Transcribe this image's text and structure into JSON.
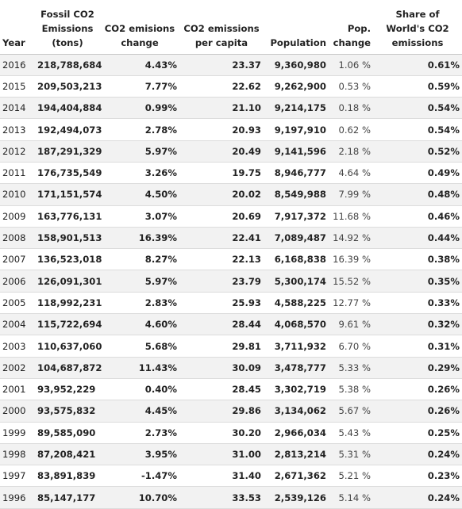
{
  "table": {
    "headers": {
      "year": "Year",
      "fossil": "Fossil CO2 Emissions (tons)",
      "change": "CO2 emisions change",
      "per_capita": "CO2 emissions per capita",
      "population": "Population",
      "pop_change": "Pop. change",
      "share": "Share of World's CO2 emissions"
    },
    "rows": [
      {
        "year": "2016",
        "fossil": "218,788,684",
        "change": "4.43%",
        "per_capita": "23.37",
        "population": "9,360,980",
        "pop_change": "1.06 %",
        "share": "0.61%"
      },
      {
        "year": "2015",
        "fossil": "209,503,213",
        "change": "7.77%",
        "per_capita": "22.62",
        "population": "9,262,900",
        "pop_change": "0.53 %",
        "share": "0.59%"
      },
      {
        "year": "2014",
        "fossil": "194,404,884",
        "change": "0.99%",
        "per_capita": "21.10",
        "population": "9,214,175",
        "pop_change": "0.18 %",
        "share": "0.54%"
      },
      {
        "year": "2013",
        "fossil": "192,494,073",
        "change": "2.78%",
        "per_capita": "20.93",
        "population": "9,197,910",
        "pop_change": "0.62 %",
        "share": "0.54%"
      },
      {
        "year": "2012",
        "fossil": "187,291,329",
        "change": "5.97%",
        "per_capita": "20.49",
        "population": "9,141,596",
        "pop_change": "2.18 %",
        "share": "0.52%"
      },
      {
        "year": "2011",
        "fossil": "176,735,549",
        "change": "3.26%",
        "per_capita": "19.75",
        "population": "8,946,777",
        "pop_change": "4.64 %",
        "share": "0.49%"
      },
      {
        "year": "2010",
        "fossil": "171,151,574",
        "change": "4.50%",
        "per_capita": "20.02",
        "population": "8,549,988",
        "pop_change": "7.99 %",
        "share": "0.48%"
      },
      {
        "year": "2009",
        "fossil": "163,776,131",
        "change": "3.07%",
        "per_capita": "20.69",
        "population": "7,917,372",
        "pop_change": "11.68 %",
        "share": "0.46%"
      },
      {
        "year": "2008",
        "fossil": "158,901,513",
        "change": "16.39%",
        "per_capita": "22.41",
        "population": "7,089,487",
        "pop_change": "14.92 %",
        "share": "0.44%"
      },
      {
        "year": "2007",
        "fossil": "136,523,018",
        "change": "8.27%",
        "per_capita": "22.13",
        "population": "6,168,838",
        "pop_change": "16.39 %",
        "share": "0.38%"
      },
      {
        "year": "2006",
        "fossil": "126,091,301",
        "change": "5.97%",
        "per_capita": "23.79",
        "population": "5,300,174",
        "pop_change": "15.52 %",
        "share": "0.35%"
      },
      {
        "year": "2005",
        "fossil": "118,992,231",
        "change": "2.83%",
        "per_capita": "25.93",
        "population": "4,588,225",
        "pop_change": "12.77 %",
        "share": "0.33%"
      },
      {
        "year": "2004",
        "fossil": "115,722,694",
        "change": "4.60%",
        "per_capita": "28.44",
        "population": "4,068,570",
        "pop_change": "9.61 %",
        "share": "0.32%"
      },
      {
        "year": "2003",
        "fossil": "110,637,060",
        "change": "5.68%",
        "per_capita": "29.81",
        "population": "3,711,932",
        "pop_change": "6.70 %",
        "share": "0.31%"
      },
      {
        "year": "2002",
        "fossil": "104,687,872",
        "change": "11.43%",
        "per_capita": "30.09",
        "population": "3,478,777",
        "pop_change": "5.33 %",
        "share": "0.29%"
      },
      {
        "year": "2001",
        "fossil": "93,952,229",
        "change": "0.40%",
        "per_capita": "28.45",
        "population": "3,302,719",
        "pop_change": "5.38 %",
        "share": "0.26%"
      },
      {
        "year": "2000",
        "fossil": "93,575,832",
        "change": "4.45%",
        "per_capita": "29.86",
        "population": "3,134,062",
        "pop_change": "5.67 %",
        "share": "0.26%"
      },
      {
        "year": "1999",
        "fossil": "89,585,090",
        "change": "2.73%",
        "per_capita": "30.20",
        "population": "2,966,034",
        "pop_change": "5.43 %",
        "share": "0.25%"
      },
      {
        "year": "1998",
        "fossil": "87,208,421",
        "change": "3.95%",
        "per_capita": "31.00",
        "population": "2,813,214",
        "pop_change": "5.31 %",
        "share": "0.24%"
      },
      {
        "year": "1997",
        "fossil": "83,891,839",
        "change": "-1.47%",
        "per_capita": "31.40",
        "population": "2,671,362",
        "pop_change": "5.21 %",
        "share": "0.23%"
      },
      {
        "year": "1996",
        "fossil": "85,147,177",
        "change": "10.70%",
        "per_capita": "33.53",
        "population": "2,539,126",
        "pop_change": "5.14 %",
        "share": "0.24%"
      }
    ]
  }
}
